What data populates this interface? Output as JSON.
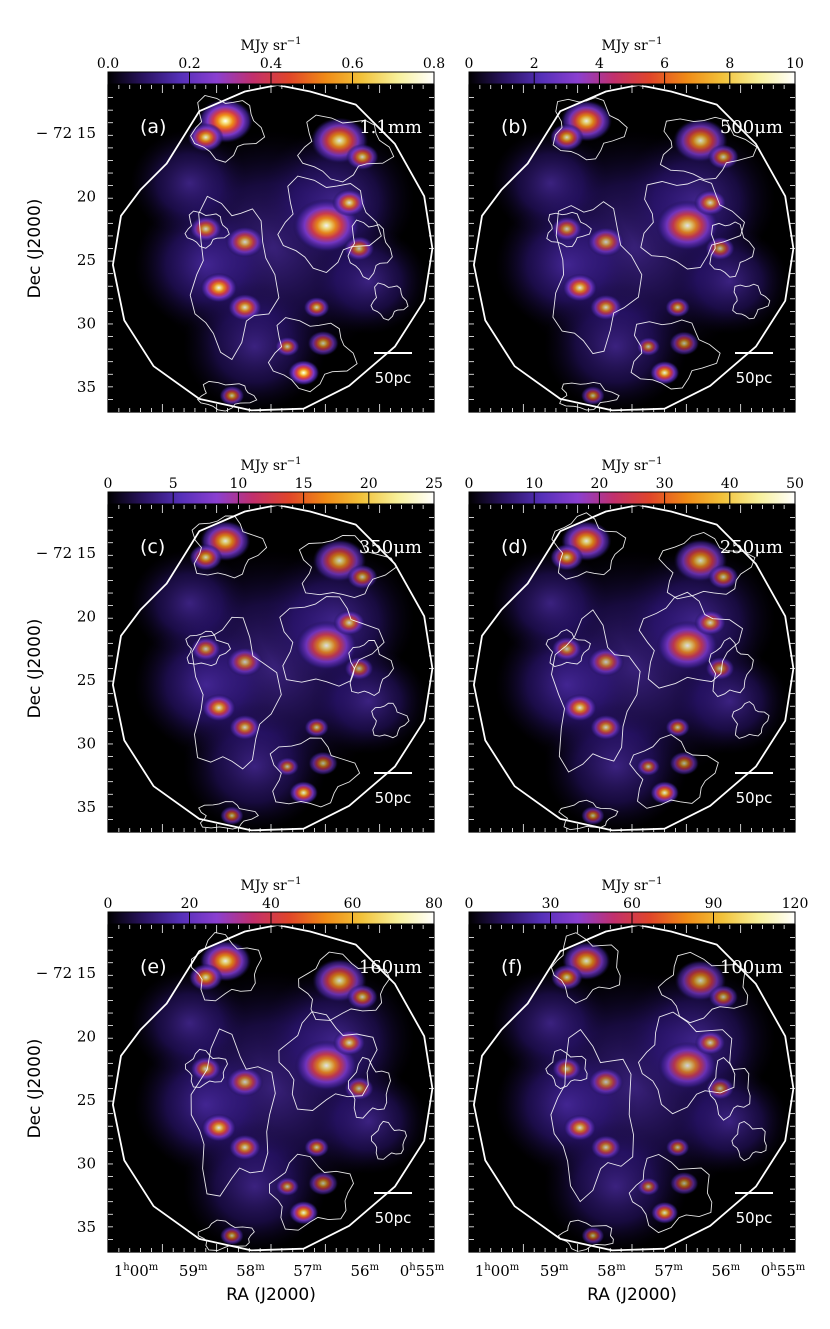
{
  "figure": {
    "colorbar_unit_main": "MJy sr",
    "colorbar_unit_exp": "−1",
    "scale_bar_label": "50pc",
    "dec_axis_label": "Dec (J2000)",
    "ra_axis_label": "RA (J2000)",
    "dec_ticks": [
      {
        "value": 15,
        "label": "− 72 15"
      },
      {
        "value": 20,
        "label": "20"
      },
      {
        "value": 25,
        "label": "25"
      },
      {
        "value": 30,
        "label": "30"
      },
      {
        "value": 35,
        "label": "35"
      }
    ],
    "ra_ticks": [
      {
        "h": "1",
        "hs": "h",
        "m": "00",
        "ms": "m"
      },
      {
        "h": "59",
        "hs": "",
        "m": "",
        "ms": "m"
      },
      {
        "h": "58",
        "hs": "",
        "m": "",
        "ms": "m"
      },
      {
        "h": "57",
        "hs": "",
        "m": "",
        "ms": "m"
      },
      {
        "h": "56",
        "hs": "",
        "m": "",
        "ms": "m"
      },
      {
        "h": "0",
        "hs": "h",
        "m": "55",
        "ms": "m"
      }
    ],
    "colormap": [
      "#000000",
      "#2b1463",
      "#5530b8",
      "#8a3fd0",
      "#c2306d",
      "#e0452a",
      "#ef8a16",
      "#f2c23a",
      "#f7f09a",
      "#ffffff"
    ],
    "panels": [
      {
        "letter": "(a)",
        "band": "1.1mm",
        "colorbar_ticks": [
          "0.0",
          "0.2",
          "0.4",
          "0.6",
          "0.8"
        ],
        "vmin": 0.0,
        "vmax": 0.8
      },
      {
        "letter": "(b)",
        "band": "500μm",
        "colorbar_ticks": [
          "0",
          "2",
          "4",
          "6",
          "8",
          "10"
        ],
        "vmin": 0,
        "vmax": 10
      },
      {
        "letter": "(c)",
        "band": "350μm",
        "colorbar_ticks": [
          "0",
          "5",
          "10",
          "15",
          "20",
          "25"
        ],
        "vmin": 0,
        "vmax": 25
      },
      {
        "letter": "(d)",
        "band": "250μm",
        "colorbar_ticks": [
          "0",
          "10",
          "20",
          "30",
          "40",
          "50"
        ],
        "vmin": 0,
        "vmax": 50
      },
      {
        "letter": "(e)",
        "band": "160μm",
        "colorbar_ticks": [
          "0",
          "20",
          "40",
          "60",
          "80"
        ],
        "vmin": 0,
        "vmax": 80
      },
      {
        "letter": "(f)",
        "band": "100μm",
        "colorbar_ticks": [
          "0",
          "30",
          "60",
          "90",
          "120"
        ],
        "vmin": 0,
        "vmax": 120
      }
    ]
  }
}
